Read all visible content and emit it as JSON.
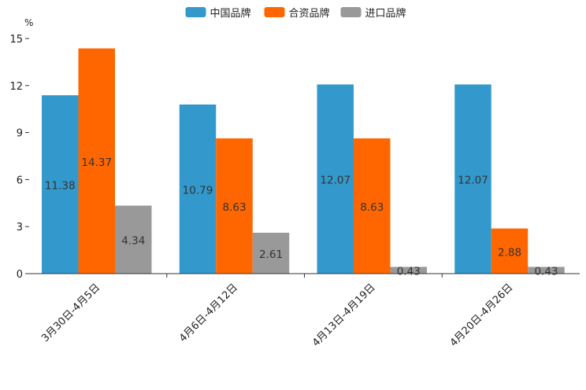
{
  "chart_data": {
    "type": "bar",
    "title": "",
    "ylabel": "%",
    "xlabel": "",
    "ylim": [
      0,
      15
    ],
    "yticks": [
      0,
      3,
      6,
      9,
      12,
      15
    ],
    "categories": [
      "3月30日-4月5日",
      "4月6日-4月12日",
      "4月13日-4月19日",
      "4月20日-4月26日"
    ],
    "series": [
      {
        "name": "中国品牌",
        "color": "#3399cc",
        "values": [
          11.38,
          10.79,
          12.07,
          12.07
        ],
        "labels": [
          "11.38",
          "10.79",
          "12.07",
          "12.07"
        ]
      },
      {
        "name": "合资品牌",
        "color": "#ff6600",
        "values": [
          14.37,
          8.63,
          8.63,
          2.88
        ],
        "labels": [
          "14.37",
          "8.63",
          "8.63",
          "2.88"
        ]
      },
      {
        "name": "进口品牌",
        "color": "#999999",
        "values": [
          4.34,
          2.61,
          0.43,
          0.43
        ],
        "labels": [
          "4.34",
          "2.61",
          "0.43",
          "0.43"
        ]
      }
    ],
    "legend": "top-center",
    "grid": false
  }
}
